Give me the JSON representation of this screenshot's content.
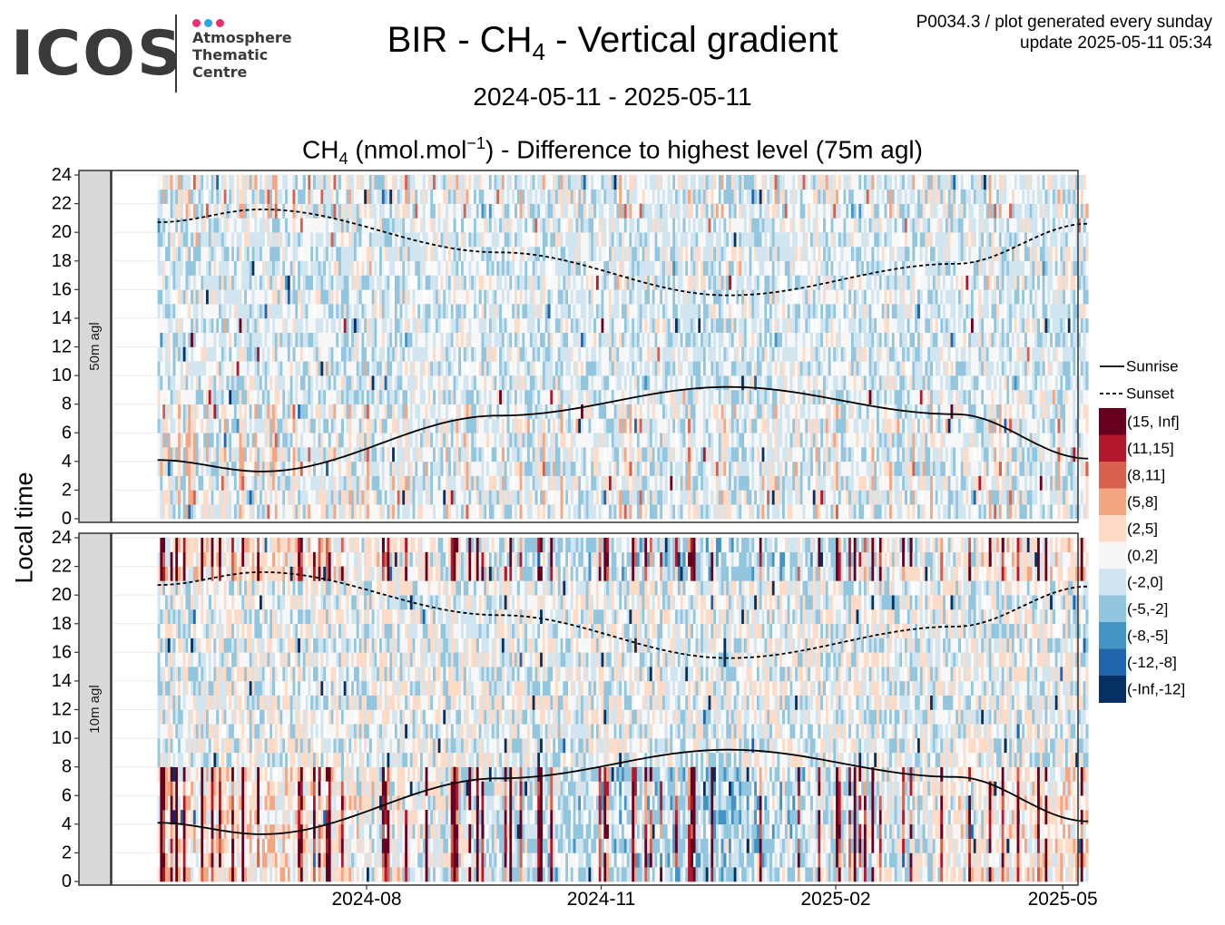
{
  "header": {
    "logo_text": "ICOS",
    "logo_subtitle": [
      "Atmosphere",
      "Thematic",
      "Centre"
    ],
    "logo_dot_colors": [
      "#e8306e",
      "#27a9e1",
      "#e8306e"
    ],
    "title_prefix": "BIR - CH",
    "title_subscript": "4",
    "title_suffix": " - Vertical gradient",
    "date_range": "2024-05-11 - 2025-05-11",
    "subtitle_prefix": "CH",
    "subtitle_subscript": "4",
    "subtitle_mid": " (nmol.mol",
    "subtitle_superscript": "−1",
    "subtitle_suffix": ") - Difference to highest level (75m agl)",
    "meta_line1": "P0034.3 / plot generated every sunday",
    "meta_line2": "update  2025-05-11 05:34"
  },
  "chart_data": {
    "type": "heatmap",
    "x_range": [
      "2024-05-11",
      "2025-05-11"
    ],
    "ylabel": "Local time",
    "y_range": [
      0,
      24
    ],
    "y_ticks": [
      0,
      2,
      4,
      6,
      8,
      10,
      12,
      14,
      16,
      18,
      20,
      22,
      24
    ],
    "x_ticks": [
      {
        "label": "2024-08",
        "date": "2024-08-01"
      },
      {
        "label": "2024-11",
        "date": "2024-11-01"
      },
      {
        "label": "2025-02",
        "date": "2025-02-01"
      },
      {
        "label": "2025-05",
        "date": "2025-05-01"
      }
    ],
    "grid": true,
    "panels": [
      {
        "label": "50m agl",
        "intensity": "weak"
      },
      {
        "label": "10m agl",
        "intensity": "strong"
      }
    ],
    "lines": [
      {
        "name": "Sunrise",
        "style": "solid",
        "points": [
          [
            "2024-05-11",
            4.1
          ],
          [
            "2024-06-21",
            3.3
          ],
          [
            "2024-09-22",
            7.2
          ],
          [
            "2024-12-21",
            9.2
          ],
          [
            "2025-03-20",
            7.3
          ],
          [
            "2025-05-11",
            4.2
          ]
        ]
      },
      {
        "name": "Sunset",
        "style": "dashed",
        "points": [
          [
            "2024-05-11",
            20.7
          ],
          [
            "2024-06-21",
            21.6
          ],
          [
            "2024-09-22",
            18.6
          ],
          [
            "2024-12-21",
            15.6
          ],
          [
            "2025-03-20",
            17.8
          ],
          [
            "2025-05-11",
            20.6
          ]
        ]
      }
    ],
    "legend": {
      "position": "right",
      "line_entries": [
        {
          "label": "Sunrise",
          "style": "solid"
        },
        {
          "label": "Sunset",
          "style": "dashed"
        }
      ],
      "bins": [
        {
          "label": "(15, Inf]",
          "color": "#67001f"
        },
        {
          "label": "(11,15]",
          "color": "#b2182b"
        },
        {
          "label": "(8,11]",
          "color": "#d6604d"
        },
        {
          "label": "(5,8]",
          "color": "#f4a582"
        },
        {
          "label": "(2,5]",
          "color": "#fddbc7"
        },
        {
          "label": "(0,2]",
          "color": "#f7f7f7"
        },
        {
          "label": "(-2,0]",
          "color": "#d1e5f0"
        },
        {
          "label": "(-5,-2]",
          "color": "#92c5de"
        },
        {
          "label": "(-8,-5]",
          "color": "#4393c3"
        },
        {
          "label": "(-12,-8]",
          "color": "#2166ac"
        },
        {
          "label": "(-Inf,-12]",
          "color": "#053061"
        }
      ]
    }
  }
}
